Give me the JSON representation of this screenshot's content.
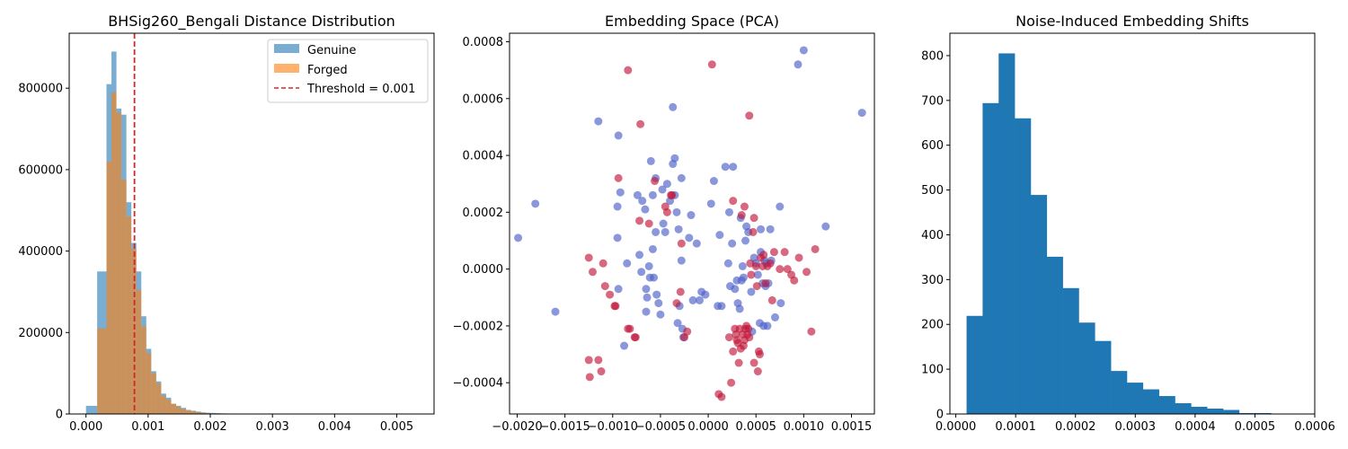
{
  "chart_data": [
    {
      "type": "bar",
      "title": "BHSig260_Bengali Distance Distribution",
      "xlabel": "",
      "ylabel": "",
      "xlim": [
        -0.00027,
        0.0056
      ],
      "ylim": [
        0,
        935000
      ],
      "xticks": [
        "0.000",
        "0.001",
        "0.002",
        "0.003",
        "0.004",
        "0.005"
      ],
      "xtick_values": [
        0,
        0.001,
        0.002,
        0.003,
        0.004,
        0.005
      ],
      "yticks": [
        "0",
        "200000",
        "400000",
        "600000",
        "800000"
      ],
      "ytick_values": [
        0,
        200000,
        400000,
        600000,
        800000
      ],
      "bin_edges": [
        0,
        0.00018,
        0.00033,
        0.00041,
        0.00049,
        0.00057,
        0.00065,
        0.00073,
        0.00081,
        0.00089,
        0.00097,
        0.00105,
        0.00113,
        0.00121,
        0.00129,
        0.00137,
        0.00145,
        0.00153,
        0.00161,
        0.00169,
        0.00177,
        0.00185,
        0.00193,
        0.00201,
        0.00209,
        0.00217,
        0.00225,
        0.00233,
        0.00241,
        0.00249,
        0.00257,
        0.00265,
        0.00273,
        0.00281,
        0.00289,
        0.00297,
        0.00305,
        0.00313,
        0.00321,
        0.00329,
        0.00337,
        0.00345,
        0.00353,
        0.00361
      ],
      "series": [
        {
          "name": "Genuine",
          "color": "#1f77b4",
          "opacity": 0.6,
          "values": [
            20000,
            350000,
            810000,
            890000,
            750000,
            735000,
            520000,
            420000,
            350000,
            240000,
            160000,
            105000,
            80000,
            50000,
            40000,
            25000,
            20000,
            15000,
            10000,
            8000,
            6000,
            4000,
            3000,
            2500,
            2000,
            1500,
            1200,
            1000,
            800,
            600,
            500,
            400,
            300,
            200,
            200,
            100,
            100,
            100,
            0,
            0,
            0,
            0,
            0
          ]
        },
        {
          "name": "Forged",
          "color": "#ff7f0e",
          "opacity": 0.6,
          "values": [
            0,
            210000,
            620000,
            790000,
            740000,
            575000,
            485000,
            405000,
            305000,
            215000,
            150000,
            100000,
            75000,
            45000,
            35000,
            25000,
            18000,
            12000,
            9000,
            6000,
            4500,
            3000,
            2000,
            1500,
            1000,
            800,
            600,
            400,
            300,
            200,
            100,
            100,
            0,
            0,
            0,
            0,
            0,
            0,
            0,
            0,
            0,
            0,
            0
          ]
        }
      ],
      "threshold": {
        "label": "Threshold = 0.001",
        "x": 0.00078,
        "color": "#d62728"
      },
      "legend": "top-right"
    },
    {
      "type": "scatter",
      "title": "Embedding Space (PCA)",
      "xlabel": "",
      "ylabel": "",
      "xlim": [
        -0.00208,
        0.00174
      ],
      "ylim": [
        -0.00051,
        0.00083
      ],
      "xticks": [
        "−0.0020",
        "−0.0015",
        "−0.0010",
        "−0.0005",
        "0.0000",
        "0.0005",
        "0.0010",
        "0.0015"
      ],
      "xtick_values": [
        -0.002,
        -0.0015,
        -0.001,
        -0.0005,
        0,
        0.0005,
        0.001,
        0.0015
      ],
      "yticks": [
        "−0.0004",
        "−0.0002",
        "0.0000",
        "0.0002",
        "0.0004",
        "0.0006",
        "0.0008"
      ],
      "ytick_values": [
        -0.0004,
        -0.0002,
        0,
        0.0002,
        0.0004,
        0.0006,
        0.0008
      ],
      "series": [
        {
          "name": "blue",
          "color": "#4b5fc8",
          "opacity": 0.65,
          "points": [
            [
              -0.00199,
              0.00011
            ],
            [
              -0.00181,
              0.00023
            ],
            [
              -0.0016,
              -0.00015
            ],
            [
              -0.00115,
              0.00052
            ],
            [
              -0.00094,
              0.00047
            ],
            [
              -0.00092,
              0.00027
            ],
            [
              -0.00095,
              0.00022
            ],
            [
              -0.00095,
              0.00011
            ],
            [
              -0.00094,
              -7e-05
            ],
            [
              -0.00085,
              2e-05
            ],
            [
              -0.00088,
              -0.00027
            ],
            [
              -0.00074,
              0.00026
            ],
            [
              -0.00072,
              5e-05
            ],
            [
              -0.0007,
              -1e-05
            ],
            [
              -0.00069,
              0.00024
            ],
            [
              -0.00066,
              0.00021
            ],
            [
              -0.00065,
              -7e-05
            ],
            [
              -0.00064,
              -0.0001
            ],
            [
              -0.00065,
              -0.00015
            ],
            [
              -0.00062,
              1e-05
            ],
            [
              -0.00061,
              -3e-05
            ],
            [
              -0.0006,
              0.00038
            ],
            [
              -0.00058,
              7e-05
            ],
            [
              -0.00058,
              0.00026
            ],
            [
              -0.00057,
              -3e-05
            ],
            [
              -0.00055,
              0.00032
            ],
            [
              -0.00055,
              0.00013
            ],
            [
              -0.00054,
              -9e-05
            ],
            [
              -0.00052,
              -0.00012
            ],
            [
              -0.0005,
              -0.00016
            ],
            [
              -0.00048,
              0.00028
            ],
            [
              -0.00047,
              0.00016
            ],
            [
              -0.00045,
              0.00013
            ],
            [
              -0.00043,
              0.0003
            ],
            [
              -0.0004,
              0.00024
            ],
            [
              -0.00037,
              0.00057
            ],
            [
              -0.00037,
              0.00037
            ],
            [
              -0.00035,
              0.00039
            ],
            [
              -0.00035,
              0.00026
            ],
            [
              -0.00033,
              0.0002
            ],
            [
              -0.00031,
              0.00014
            ],
            [
              -0.00028,
              0.00032
            ],
            [
              -0.00028,
              3e-05
            ],
            [
              -0.00032,
              -0.00019
            ],
            [
              -0.00027,
              -0.00021
            ],
            [
              -0.00026,
              -0.00024
            ],
            [
              -0.0003,
              -0.00013
            ],
            [
              -0.0002,
              0.00011
            ],
            [
              -0.00018,
              0.00019
            ],
            [
              -0.00016,
              -0.00011
            ],
            [
              -0.00012,
              9e-05
            ],
            [
              -9e-05,
              -0.00011
            ],
            [
              -7e-05,
              -8e-05
            ],
            [
              -3e-05,
              -9e-05
            ],
            [
              3e-05,
              0.00023
            ],
            [
              6e-05,
              0.00031
            ],
            [
              0.0001,
              -0.00013
            ],
            [
              0.00012,
              0.00012
            ],
            [
              0.00014,
              -0.00013
            ],
            [
              0.00018,
              0.00036
            ],
            [
              0.00021,
              2e-05
            ],
            [
              0.00022,
              0.0002
            ],
            [
              0.00023,
              -6e-05
            ],
            [
              0.00025,
              9e-05
            ],
            [
              0.00026,
              0.00036
            ],
            [
              0.00028,
              -7e-05
            ],
            [
              0.0003,
              -4e-05
            ],
            [
              0.00031,
              -0.00012
            ],
            [
              0.00033,
              -0.00014
            ],
            [
              0.00034,
              0.00018
            ],
            [
              0.00035,
              -4e-05
            ],
            [
              0.00036,
              1e-05
            ],
            [
              0.00037,
              -3e-05
            ],
            [
              0.00039,
              0.0001
            ],
            [
              0.0004,
              0.00015
            ],
            [
              0.00042,
              0.00013
            ],
            [
              0.00045,
              -8e-05
            ],
            [
              0.00046,
              -0.00022
            ],
            [
              0.00048,
              4e-05
            ],
            [
              0.0005,
              2e-05
            ],
            [
              0.00052,
              -2e-05
            ],
            [
              0.00054,
              -0.00019
            ],
            [
              0.00055,
              6e-05
            ],
            [
              0.00055,
              0.00014
            ],
            [
              0.00057,
              -5e-05
            ],
            [
              0.00058,
              -0.0002
            ],
            [
              0.00059,
              3e-05
            ],
            [
              0.0006,
              -6e-05
            ],
            [
              0.00061,
              2e-05
            ],
            [
              0.00063,
              -5e-05
            ],
            [
              0.00065,
              0.00014
            ],
            [
              0.00066,
              3e-05
            ],
            [
              0.0007,
              -0.00017
            ],
            [
              0.00075,
              0.00022
            ],
            [
              0.00076,
              -0.00012
            ],
            [
              0.00094,
              0.00072
            ],
            [
              0.001,
              0.00077
            ],
            [
              0.00123,
              0.00015
            ],
            [
              0.00161,
              0.00055
            ],
            [
              0.00062,
              -0.0002
            ]
          ]
        },
        {
          "name": "red",
          "color": "#c1173a",
          "opacity": 0.65,
          "points": [
            [
              -0.00125,
              4e-05
            ],
            [
              -0.00125,
              -0.00032
            ],
            [
              -0.00124,
              -0.00038
            ],
            [
              -0.00121,
              -1e-05
            ],
            [
              -0.00115,
              -0.00032
            ],
            [
              -0.00112,
              -0.00036
            ],
            [
              -0.0011,
              2e-05
            ],
            [
              -0.00108,
              -6e-05
            ],
            [
              -0.00103,
              -9e-05
            ],
            [
              -0.00098,
              -0.00013
            ],
            [
              -0.00097,
              -0.00013
            ],
            [
              -0.00094,
              0.00032
            ],
            [
              -0.00084,
              0.0007
            ],
            [
              -0.00084,
              -0.00021
            ],
            [
              -0.00082,
              -0.00021
            ],
            [
              -0.00077,
              -0.00024
            ],
            [
              -0.00076,
              -0.00024
            ],
            [
              -0.00072,
              0.00017
            ],
            [
              -0.00071,
              0.00051
            ],
            [
              -0.00056,
              0.00031
            ],
            [
              -0.00045,
              0.00022
            ],
            [
              -0.00043,
              0.0002
            ],
            [
              -0.00039,
              0.00026
            ],
            [
              -0.00038,
              0.00026
            ],
            [
              -0.00033,
              -0.00012
            ],
            [
              -0.00029,
              -8e-05
            ],
            [
              -0.00028,
              9e-05
            ],
            [
              -0.00025,
              -0.00024
            ],
            [
              -0.00022,
              -0.00022
            ],
            [
              4e-05,
              0.00072
            ],
            [
              0.00011,
              -0.00044
            ],
            [
              0.00014,
              -0.00045
            ],
            [
              0.00022,
              -0.00024
            ],
            [
              0.00024,
              -0.0004
            ],
            [
              0.00026,
              -0.00029
            ],
            [
              0.00028,
              -0.00021
            ],
            [
              0.00029,
              -0.00023
            ],
            [
              0.0003,
              -0.00025
            ],
            [
              0.00031,
              -0.00026
            ],
            [
              0.00032,
              -0.00033
            ],
            [
              0.00033,
              -0.00021
            ],
            [
              0.00034,
              -0.00028
            ],
            [
              0.00035,
              0.00019
            ],
            [
              0.00036,
              -0.00023
            ],
            [
              0.00037,
              -0.00027
            ],
            [
              0.00038,
              0.00022
            ],
            [
              0.00038,
              -0.00025
            ],
            [
              0.00039,
              -0.00021
            ],
            [
              0.0004,
              -0.0002
            ],
            [
              0.00041,
              -0.00023
            ],
            [
              0.00042,
              -0.00021
            ],
            [
              0.00043,
              -0.00024
            ],
            [
              0.00043,
              0.00054
            ],
            [
              0.00044,
              2e-05
            ],
            [
              0.00045,
              -2e-05
            ],
            [
              0.00047,
              0.00013
            ],
            [
              0.00048,
              -0.00033
            ],
            [
              0.00048,
              0.00018
            ],
            [
              0.0005,
              1e-05
            ],
            [
              0.00051,
              -6e-05
            ],
            [
              0.00052,
              -0.00036
            ],
            [
              0.00053,
              -0.00029
            ],
            [
              0.00054,
              -0.0003
            ],
            [
              0.00055,
              4e-05
            ],
            [
              0.00057,
              1e-05
            ],
            [
              0.00058,
              5e-05
            ],
            [
              0.0006,
              -5e-05
            ],
            [
              0.00062,
              1e-05
            ],
            [
              0.00065,
              2e-05
            ],
            [
              0.00067,
              -0.00011
            ],
            [
              0.00069,
              6e-05
            ],
            [
              0.00075,
              0.0
            ],
            [
              0.0008,
              6e-05
            ],
            [
              0.00083,
              0.0
            ],
            [
              0.00087,
              -2e-05
            ],
            [
              0.0009,
              -4e-05
            ],
            [
              0.00095,
              4e-05
            ],
            [
              0.00103,
              -1e-05
            ],
            [
              0.00108,
              -0.00022
            ],
            [
              0.00112,
              7e-05
            ],
            [
              -0.00062,
              0.00016
            ],
            [
              0.00026,
              0.00024
            ]
          ]
        }
      ]
    },
    {
      "type": "bar",
      "title": "Noise-Induced Embedding Shifts",
      "xlabel": "",
      "ylabel": "",
      "xlim": [
        -9.9e-06,
        0.0006
      ],
      "ylim": [
        0,
        850
      ],
      "xticks": [
        "0.0000",
        "0.0001",
        "0.0002",
        "0.0003",
        "0.0004",
        "0.0005",
        "0.0006"
      ],
      "xtick_values": [
        0,
        0.0001,
        0.0002,
        0.0003,
        0.0004,
        0.0005,
        0.0006
      ],
      "yticks": [
        "0",
        "100",
        "200",
        "300",
        "400",
        "500",
        "600",
        "700",
        "800"
      ],
      "ytick_values": [
        0,
        100,
        200,
        300,
        400,
        500,
        600,
        700,
        800
      ],
      "bin_start": 1.8e-05,
      "bin_width": 2.68e-05,
      "series": [
        {
          "name": "shifts",
          "color": "#1f77b4",
          "values": [
            219,
            694,
            805,
            660,
            489,
            351,
            281,
            204,
            163,
            96,
            70,
            55,
            40,
            24,
            16,
            12,
            9,
            2,
            2,
            0
          ]
        }
      ]
    }
  ]
}
